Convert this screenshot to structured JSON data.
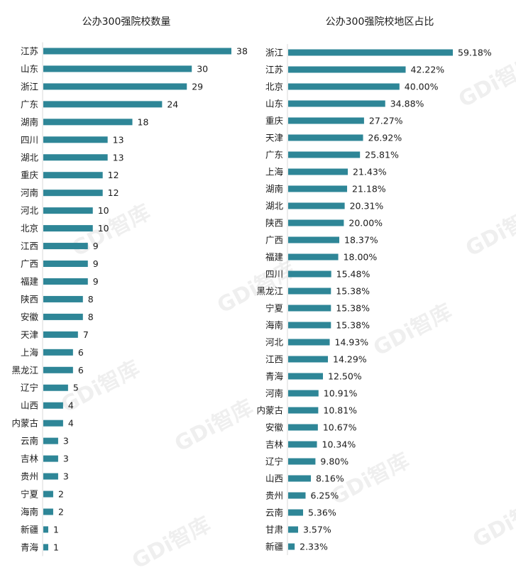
{
  "colors": {
    "bar": "#2e8697",
    "text": "#1a1a1a",
    "axis": "#d9d9d9"
  },
  "watermark": "GDi智库",
  "chart_data": [
    {
      "type": "bar",
      "orientation": "horizontal",
      "title": "公办300强院校数量",
      "categories": [
        "江苏",
        "山东",
        "浙江",
        "广东",
        "湖南",
        "四川",
        "湖北",
        "重庆",
        "河南",
        "河北",
        "北京",
        "江西",
        "广西",
        "福建",
        "陕西",
        "安徽",
        "天津",
        "上海",
        "黑龙江",
        "辽宁",
        "山西",
        "内蒙古",
        "云南",
        "吉林",
        "贵州",
        "宁夏",
        "海南",
        "新疆",
        "青海"
      ],
      "values": [
        38,
        30,
        29,
        24,
        18,
        13,
        13,
        12,
        12,
        10,
        10,
        9,
        9,
        9,
        8,
        8,
        7,
        6,
        6,
        5,
        4,
        4,
        3,
        3,
        3,
        2,
        2,
        1,
        1
      ],
      "value_labels": [
        "38",
        "30",
        "29",
        "24",
        "18",
        "13",
        "13",
        "12",
        "12",
        "10",
        "10",
        "9",
        "9",
        "9",
        "8",
        "8",
        "7",
        "6",
        "6",
        "5",
        "4",
        "4",
        "3",
        "3",
        "3",
        "2",
        "2",
        "1",
        "1"
      ],
      "xlim": [
        0,
        38
      ],
      "grid": false,
      "legend": "none"
    },
    {
      "type": "bar",
      "orientation": "horizontal",
      "title": "公办300强院校地区占比",
      "categories": [
        "浙江",
        "江苏",
        "北京",
        "山东",
        "重庆",
        "天津",
        "广东",
        "上海",
        "湖南",
        "湖北",
        "陕西",
        "广西",
        "福建",
        "四川",
        "黑龙江",
        "宁夏",
        "海南",
        "河北",
        "江西",
        "青海",
        "河南",
        "内蒙古",
        "安徽",
        "吉林",
        "辽宁",
        "山西",
        "贵州",
        "云南",
        "甘肃",
        "新疆"
      ],
      "values": [
        59.18,
        42.22,
        40.0,
        34.88,
        27.27,
        26.92,
        25.81,
        21.43,
        21.18,
        20.31,
        20.0,
        18.37,
        18.0,
        15.48,
        15.38,
        15.38,
        15.38,
        14.93,
        14.29,
        12.5,
        10.91,
        10.81,
        10.67,
        10.34,
        9.8,
        8.16,
        6.25,
        5.36,
        3.57,
        2.33
      ],
      "value_labels": [
        "59.18%",
        "42.22%",
        "40.00%",
        "34.88%",
        "27.27%",
        "26.92%",
        "25.81%",
        "21.43%",
        "21.18%",
        "20.31%",
        "20.00%",
        "18.37%",
        "18.00%",
        "15.48%",
        "15.38%",
        "15.38%",
        "15.38%",
        "14.93%",
        "14.29%",
        "12.50%",
        "10.91%",
        "10.81%",
        "10.67%",
        "10.34%",
        "9.80%",
        "8.16%",
        "6.25%",
        "5.36%",
        "3.57%",
        "2.33%"
      ],
      "xlim": [
        0,
        59.18
      ],
      "grid": false,
      "legend": "none"
    }
  ]
}
